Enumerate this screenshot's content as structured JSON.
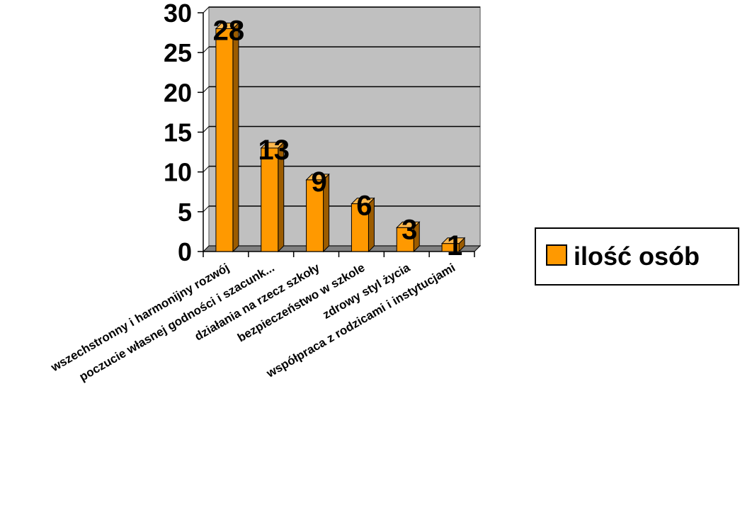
{
  "chart_data": {
    "type": "bar",
    "title": "",
    "xlabel": "",
    "ylabel": "",
    "categories": [
      "wszechstronny i harmonijny rozwój",
      "poczucie własnej godności i szacunk...",
      "działania  na rzecz szkoły",
      "bezpieczeństwo w szkole",
      "zdrowy styl życia",
      "współpraca z rodzicami i instytucjami"
    ],
    "series": [
      {
        "name": "ilość osób",
        "values": [
          28,
          13,
          9,
          6,
          3,
          1
        ]
      }
    ],
    "ylim": [
      0,
      30
    ],
    "yticks": [
      0,
      5,
      10,
      15,
      20,
      25,
      30
    ],
    "grid": true,
    "legend": "right",
    "style": "3d-column",
    "colors": {
      "bar_front": "#FF9900",
      "bar_side": "#9C5C00",
      "bar_top": "#FFB84D",
      "plot_wall": "#C0C0C0",
      "gridline": "#000000"
    }
  }
}
